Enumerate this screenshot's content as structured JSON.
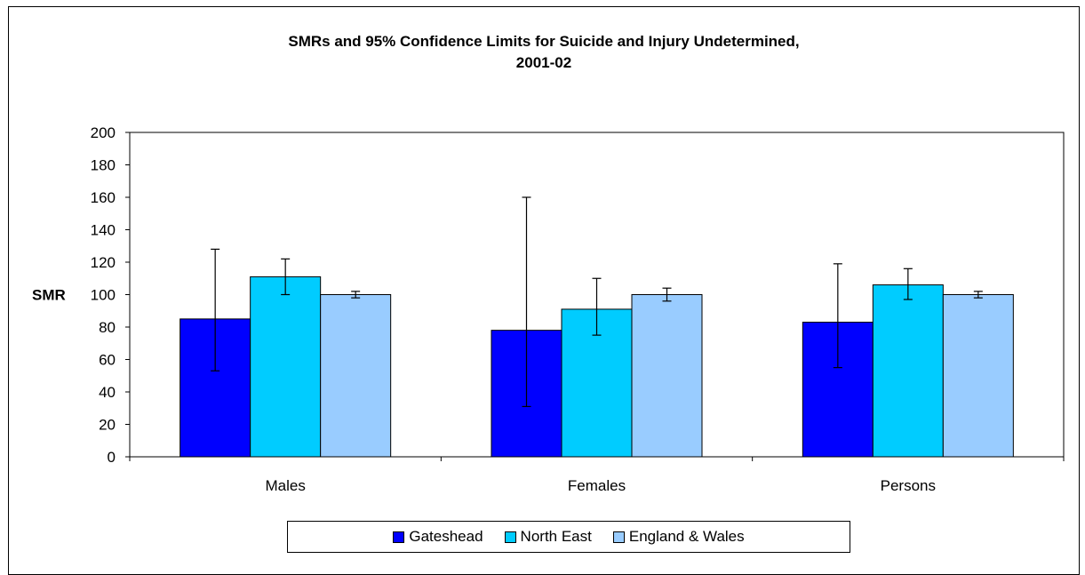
{
  "chart_data": {
    "type": "bar",
    "title": "SMRs and 95% Confidence Limits for Suicide and Injury Undetermined,",
    "subtitle": "2001-02",
    "xlabel": "",
    "ylabel": "SMR",
    "ylim": [
      0,
      200
    ],
    "yticks": [
      0,
      20,
      40,
      60,
      80,
      100,
      120,
      140,
      160,
      180,
      200
    ],
    "grid": false,
    "legend": "bottom",
    "categories": [
      "Males",
      "Females",
      "Persons"
    ],
    "series": [
      {
        "name": "Gateshead",
        "color": "#0000FF",
        "values": [
          85,
          78,
          83
        ],
        "lower": [
          53,
          31,
          55
        ],
        "upper": [
          128,
          160,
          119
        ]
      },
      {
        "name": "North East",
        "color": "#00CCFF",
        "values": [
          111,
          91,
          106
        ],
        "lower": [
          100,
          75,
          97
        ],
        "upper": [
          122,
          110,
          116
        ]
      },
      {
        "name": "England & Wales",
        "color": "#99CCFF",
        "values": [
          100,
          100,
          100
        ],
        "lower": [
          98,
          96,
          98
        ],
        "upper": [
          102,
          104,
          102
        ]
      }
    ]
  }
}
